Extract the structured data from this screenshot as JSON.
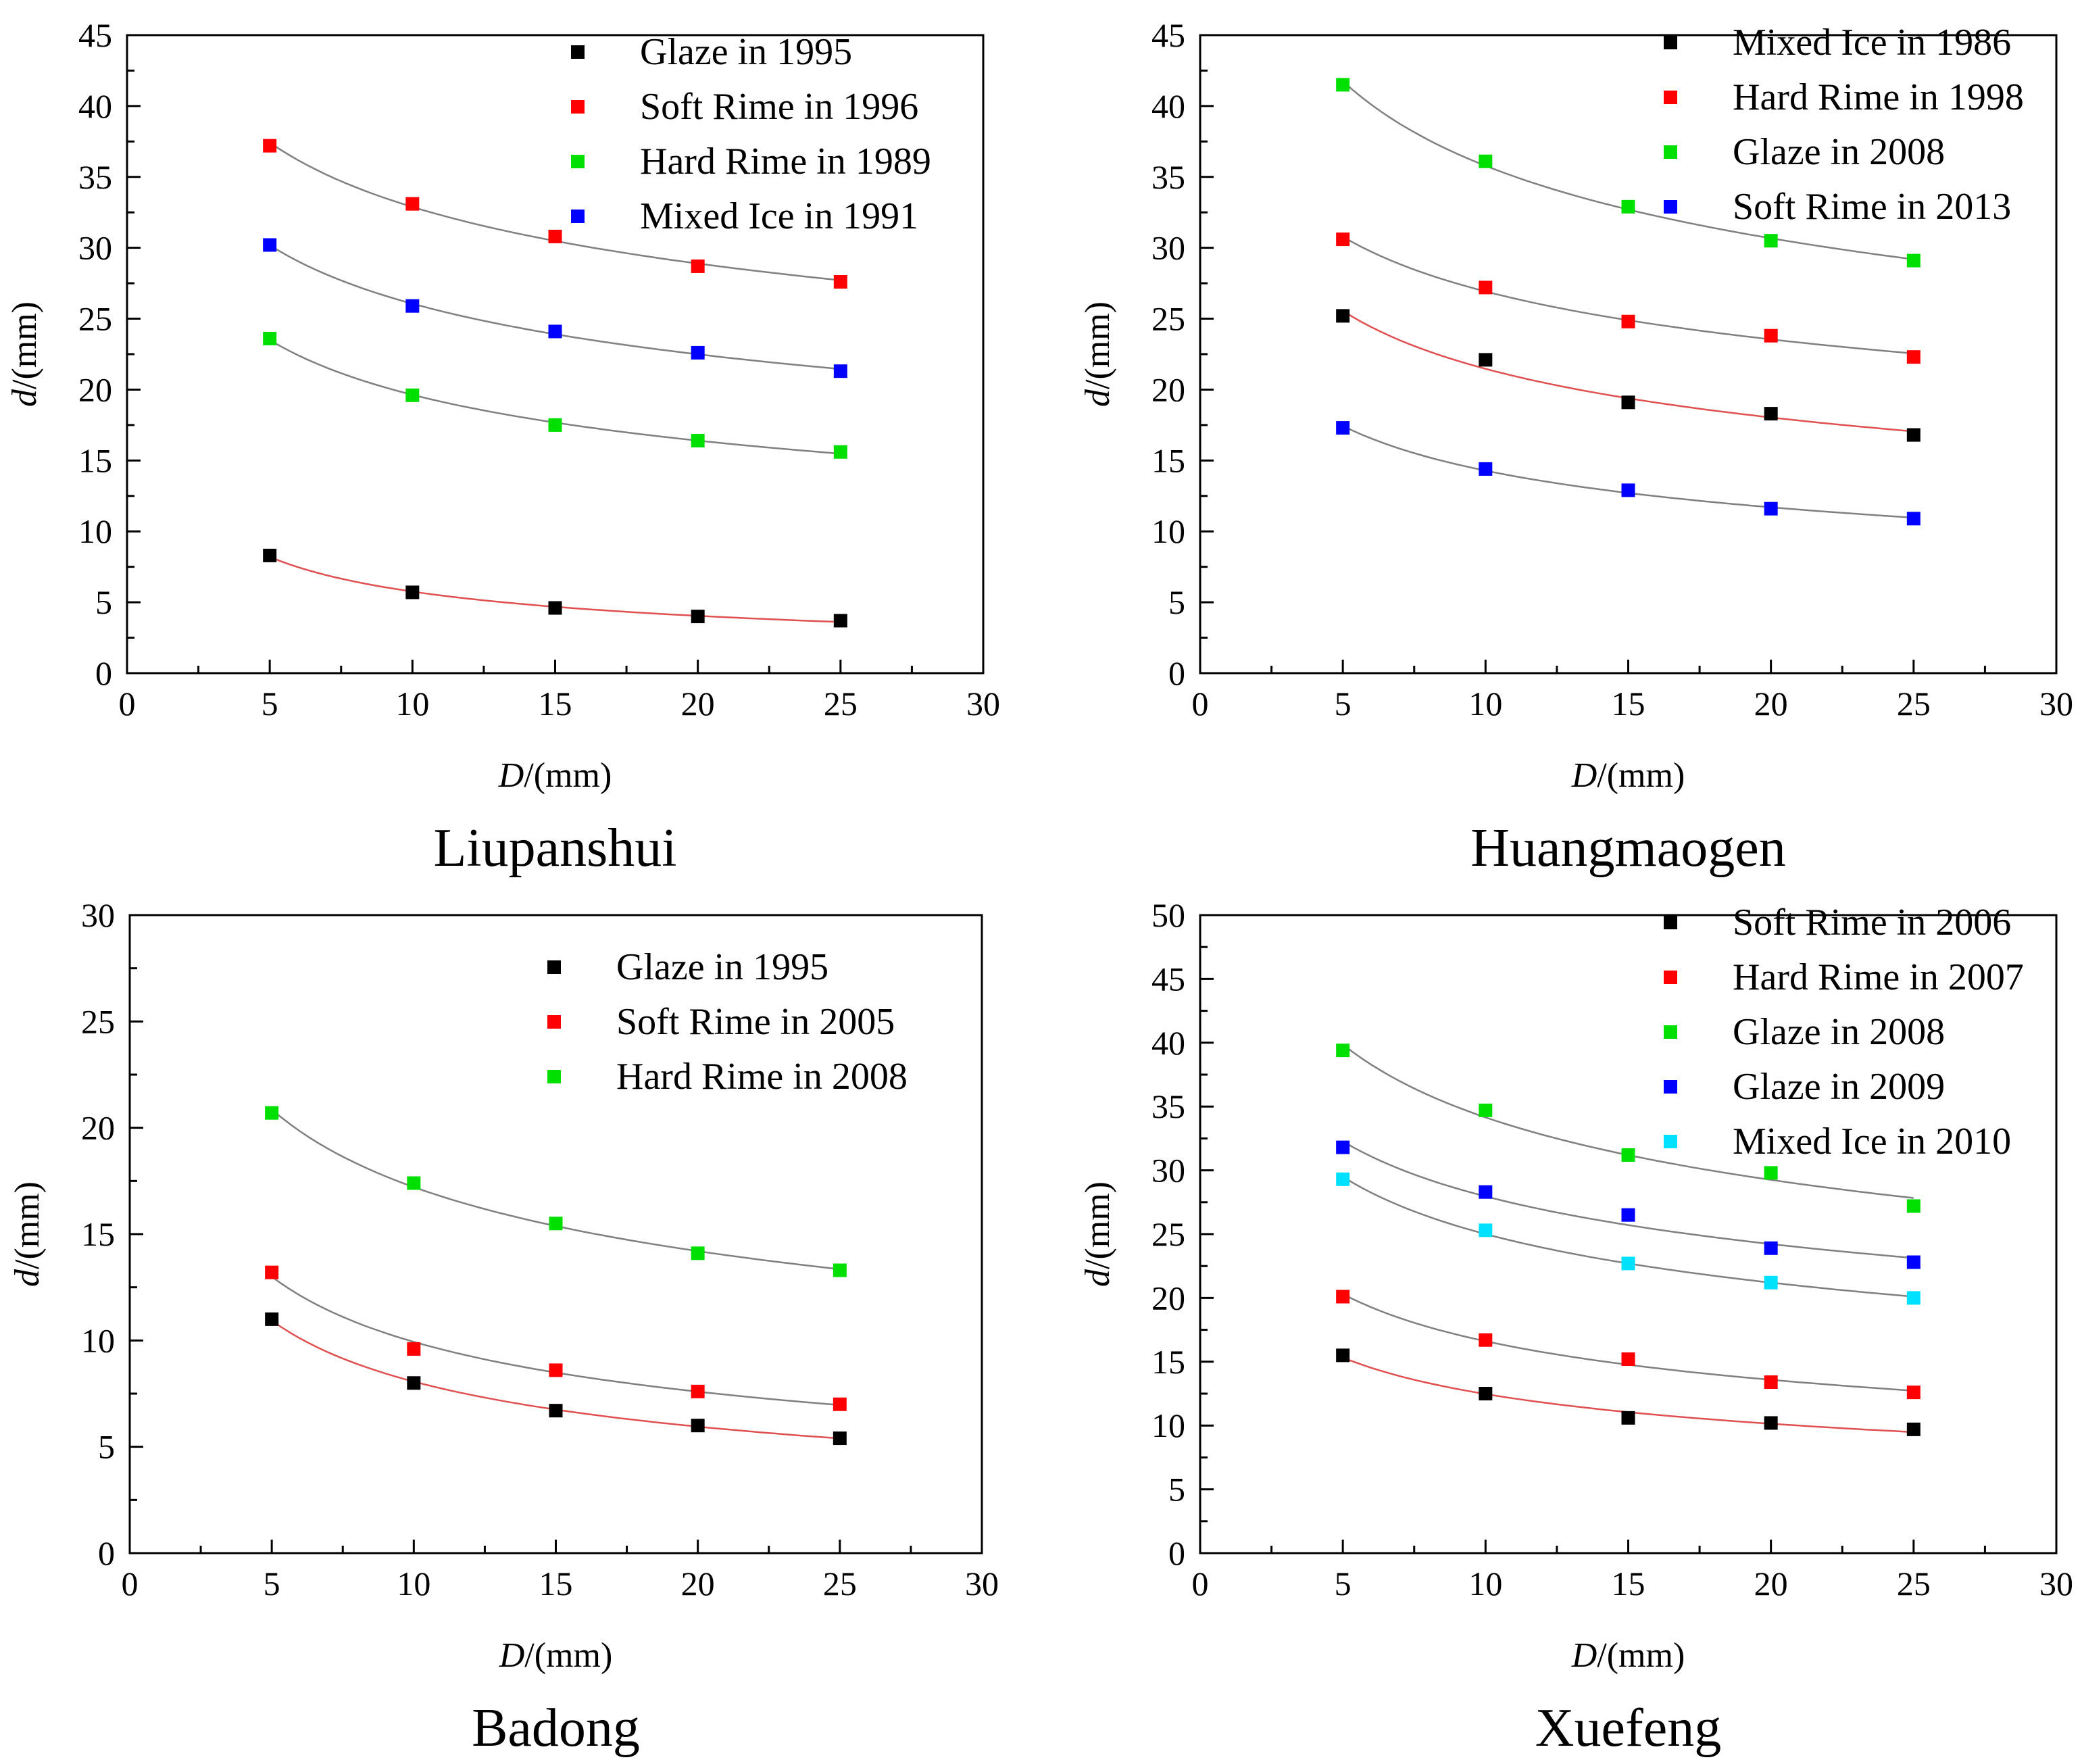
{
  "chart_data": [
    {
      "type": "scatter",
      "title": "Liupanshui",
      "xlabel_italic": "D",
      "xlabel_rest": "/(mm)",
      "ylabel_italic": "d",
      "ylabel_rest": "/(mm)",
      "xlim": [
        0,
        30
      ],
      "ylim": [
        0,
        45
      ],
      "xticks": [
        0,
        5,
        10,
        15,
        20,
        25,
        30
      ],
      "yticks": [
        0,
        5,
        10,
        15,
        20,
        25,
        30,
        35,
        40,
        45
      ],
      "x": [
        5,
        10,
        15,
        20,
        25
      ],
      "legend_position": "top-right",
      "series": [
        {
          "name": "Glaze in 1995",
          "color": "#000000",
          "fit_color": "#e05050",
          "values": [
            8.3,
            5.7,
            4.6,
            4.0,
            3.7
          ]
        },
        {
          "name": "Soft Rime in 1996",
          "color": "#ff0000",
          "fit_color": "#808080",
          "values": [
            37.2,
            33.1,
            30.8,
            28.7,
            27.6
          ]
        },
        {
          "name": "Hard Rime in 1989",
          "color": "#00e000",
          "fit_color": "#808080",
          "values": [
            23.6,
            19.6,
            17.5,
            16.4,
            15.6
          ]
        },
        {
          "name": "Mixed Ice in 1991",
          "color": "#0000ff",
          "fit_color": "#808080",
          "values": [
            30.2,
            25.9,
            24.1,
            22.6,
            21.3
          ]
        }
      ]
    },
    {
      "type": "scatter",
      "title": "Huangmaogen",
      "xlabel_italic": "D",
      "xlabel_rest": "/(mm)",
      "ylabel_italic": "d",
      "ylabel_rest": "/(mm)",
      "xlim": [
        0,
        30
      ],
      "ylim": [
        0,
        45
      ],
      "xticks": [
        0,
        5,
        10,
        15,
        20,
        25,
        30
      ],
      "yticks": [
        0,
        5,
        10,
        15,
        20,
        25,
        30,
        35,
        40,
        45
      ],
      "x": [
        5,
        10,
        15,
        20,
        25
      ],
      "legend_position": "top-right",
      "series": [
        {
          "name": "Mixed Ice in 1986",
          "color": "#000000",
          "fit_color": "#e05050",
          "values": [
            25.2,
            22.1,
            19.1,
            18.3,
            16.8
          ]
        },
        {
          "name": "Hard Rime in 1998",
          "color": "#ff0000",
          "fit_color": "#808080",
          "values": [
            30.6,
            27.2,
            24.8,
            23.8,
            22.3
          ]
        },
        {
          "name": "Glaze in 2008",
          "color": "#00e000",
          "fit_color": "#808080",
          "values": [
            41.5,
            36.1,
            32.9,
            30.5,
            29.1
          ]
        },
        {
          "name": "Soft Rime in 2013",
          "color": "#0000ff",
          "fit_color": "#808080",
          "values": [
            17.3,
            14.4,
            12.9,
            11.6,
            10.9
          ]
        }
      ]
    },
    {
      "type": "scatter",
      "title": "Badong",
      "xlabel_italic": "D",
      "xlabel_rest": "/(mm)",
      "ylabel_italic": "d",
      "ylabel_rest": "/(mm)",
      "xlim": [
        0,
        30
      ],
      "ylim": [
        0,
        30
      ],
      "xticks": [
        0,
        5,
        10,
        15,
        20,
        25,
        30
      ],
      "yticks": [
        0,
        5,
        10,
        15,
        20,
        25,
        30
      ],
      "x": [
        5,
        10,
        15,
        20,
        25
      ],
      "legend_position": "top-right",
      "series": [
        {
          "name": "Glaze in 1995",
          "color": "#000000",
          "fit_color": "#e05050",
          "values": [
            11.0,
            8.0,
            6.7,
            6.0,
            5.4
          ]
        },
        {
          "name": "Soft Rime in 2005",
          "color": "#ff0000",
          "fit_color": "#808080",
          "values": [
            13.2,
            9.6,
            8.6,
            7.6,
            7.0
          ]
        },
        {
          "name": "Hard Rime in 2008",
          "color": "#00e000",
          "fit_color": "#808080",
          "values": [
            20.7,
            17.4,
            15.5,
            14.1,
            13.3
          ]
        }
      ]
    },
    {
      "type": "scatter",
      "title": "Xuefeng",
      "xlabel_italic": "D",
      "xlabel_rest": "/(mm)",
      "ylabel_italic": "d",
      "ylabel_rest": "/(mm)",
      "xlim": [
        0,
        30
      ],
      "ylim": [
        0,
        50
      ],
      "xticks": [
        0,
        5,
        10,
        15,
        20,
        25,
        30
      ],
      "yticks": [
        0,
        5,
        10,
        15,
        20,
        25,
        30,
        35,
        40,
        45,
        50
      ],
      "x": [
        5,
        10,
        15,
        20,
        25
      ],
      "legend_position": "top-right",
      "series": [
        {
          "name": "Soft Rime in 2006",
          "color": "#000000",
          "fit_color": "#e05050",
          "values": [
            15.5,
            12.5,
            10.6,
            10.2,
            9.7
          ]
        },
        {
          "name": "Hard Rime in 2007",
          "color": "#ff0000",
          "fit_color": "#808080",
          "values": [
            20.1,
            16.7,
            15.2,
            13.4,
            12.6
          ]
        },
        {
          "name": "Glaze in 2008",
          "color": "#00e000",
          "fit_color": "#808080",
          "values": [
            39.4,
            34.7,
            31.2,
            29.8,
            27.2
          ]
        },
        {
          "name": "Glaze in 2009",
          "color": "#0000ff",
          "fit_color": "#808080",
          "values": [
            31.8,
            28.3,
            26.5,
            23.9,
            22.8
          ]
        },
        {
          "name": "Mixed Ice in 2010",
          "color": "#00e0ff",
          "fit_color": "#808080",
          "values": [
            29.3,
            25.3,
            22.7,
            21.2,
            20.0
          ]
        }
      ]
    }
  ]
}
